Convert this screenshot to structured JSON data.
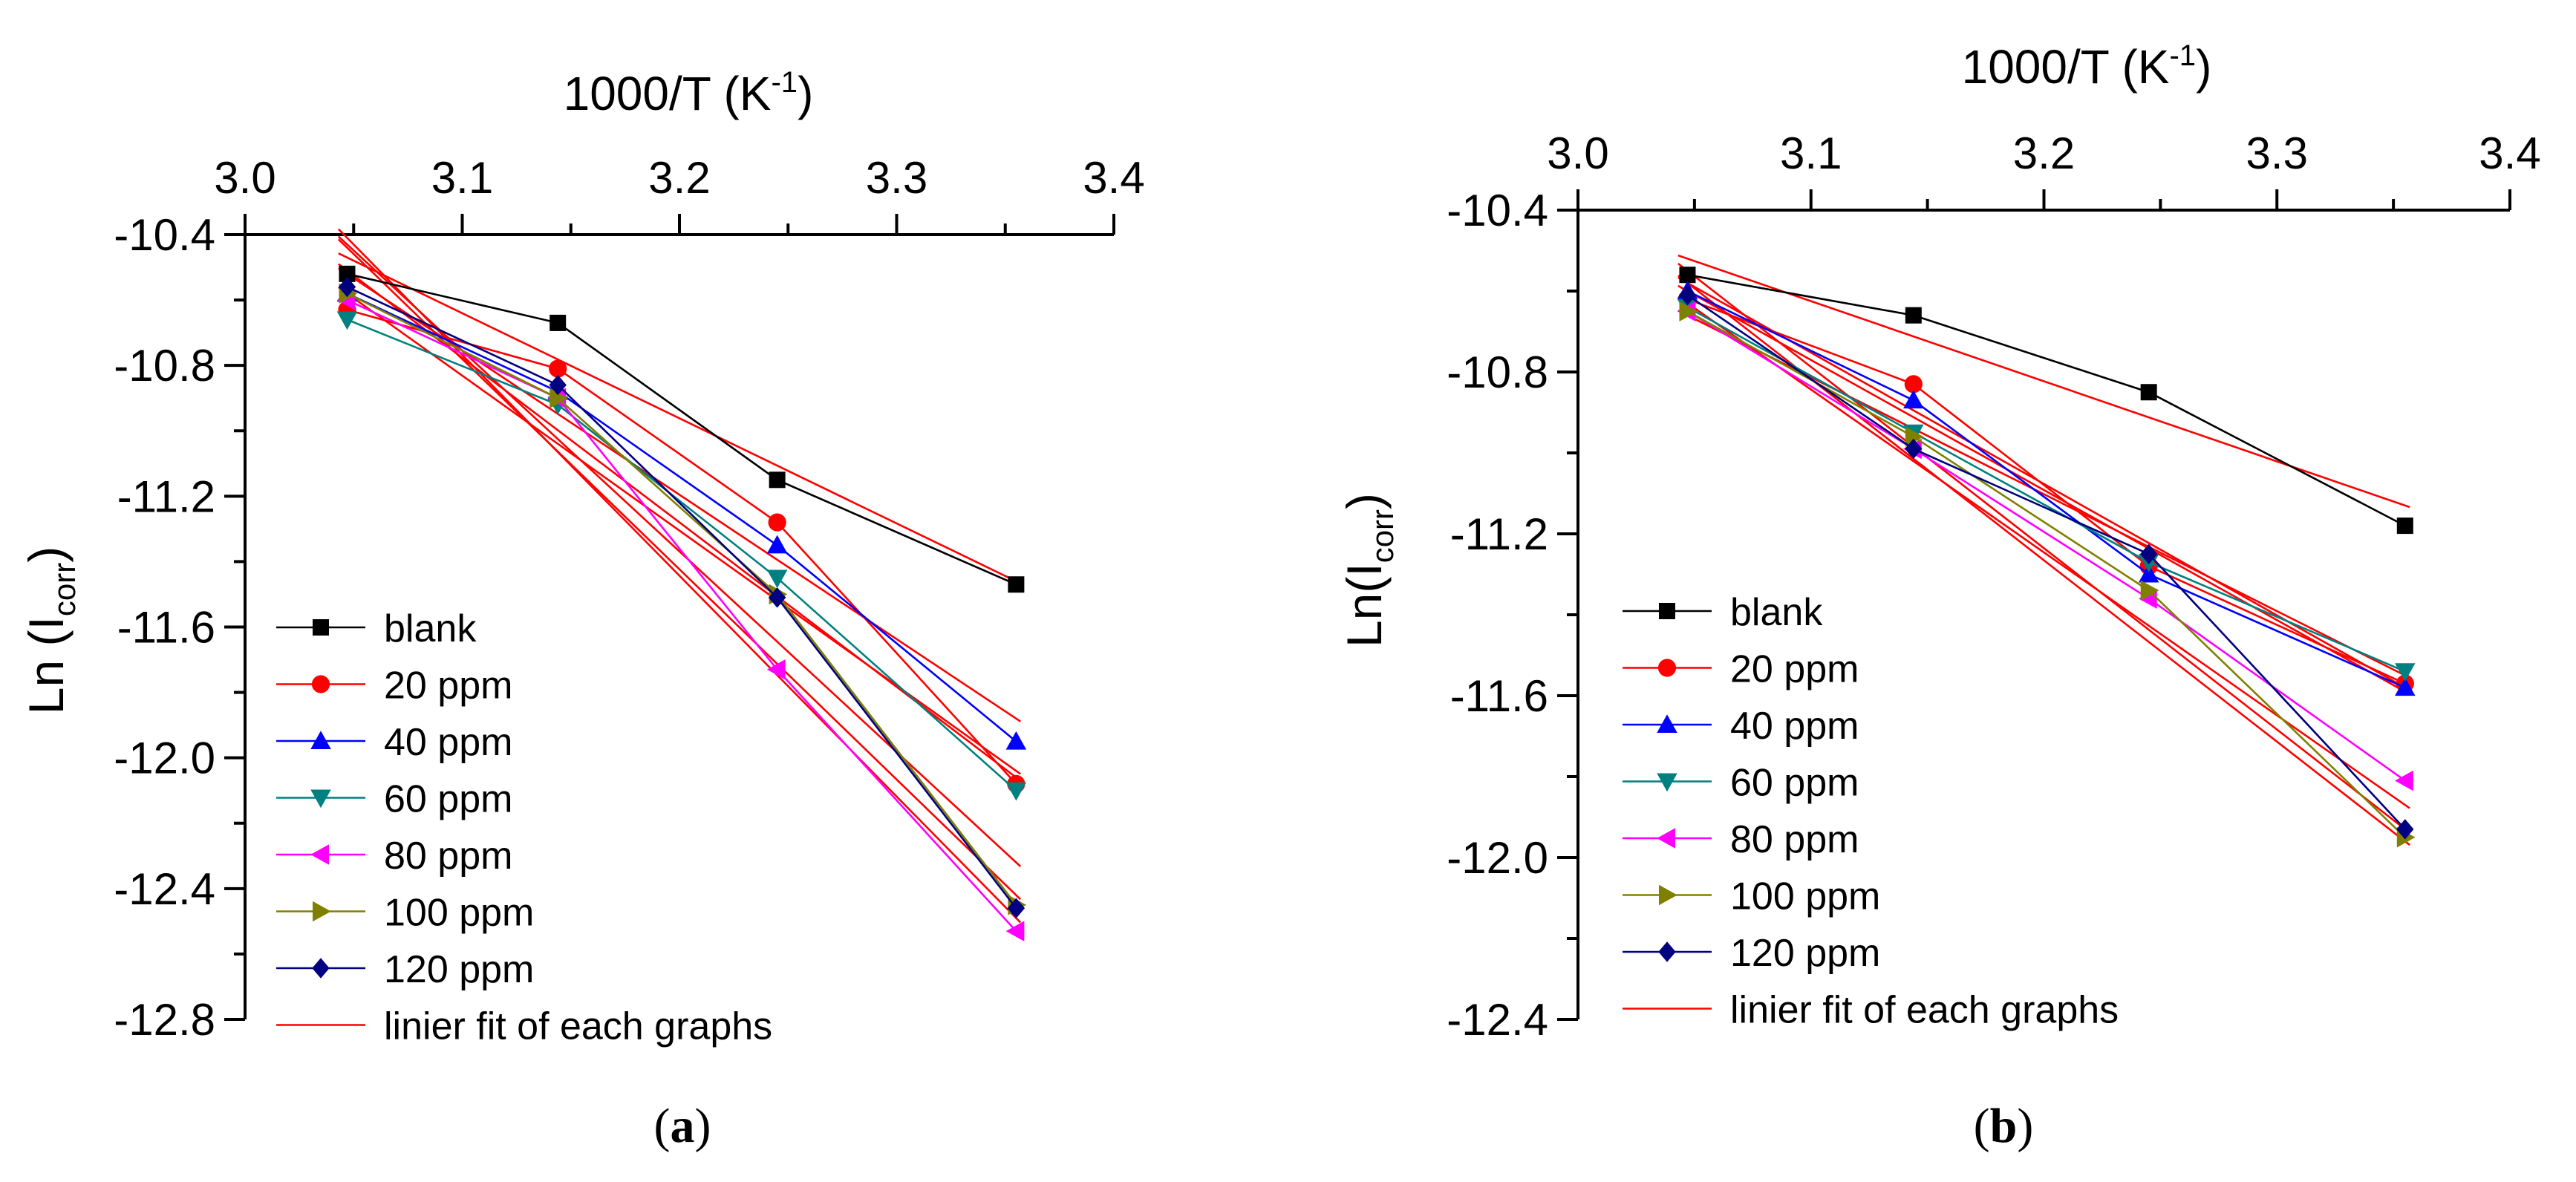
{
  "chart_data": [
    {
      "type": "line",
      "panel_label": "a",
      "xlabel": "1000/T (K",
      "xlabel_sup": "-1",
      "xlabel_close": ")",
      "ylabel": "Ln (I",
      "ylabel_sub": "corr",
      "ylabel_close": ")",
      "xlim": [
        3.0,
        3.4
      ],
      "ylim": [
        -12.8,
        -10.4
      ],
      "x_axis_position": "top",
      "xticks": [
        "3.0",
        "3.1",
        "3.2",
        "3.3",
        "3.4"
      ],
      "yticks": [
        "-10.4",
        "-10.8",
        "-11.2",
        "-11.6",
        "-12.0",
        "-12.4",
        "-12.8"
      ],
      "grid": false,
      "legend_position": "bottom-left",
      "fit_label": "linier fit of each graphs",
      "fit_color": "#ff0000",
      "x": [
        3.047,
        3.144,
        3.245,
        3.355
      ],
      "series": [
        {
          "name": "blank",
          "marker": "square",
          "color": "#000000",
          "values": [
            -10.52,
            -10.67,
            -11.15,
            -11.47
          ],
          "fit": [
            -10.47,
            -11.46
          ]
        },
        {
          "name": "20 ppm",
          "marker": "circle",
          "color": "#ff0000",
          "values": [
            -10.63,
            -10.81,
            -11.28,
            -12.08
          ],
          "fit": [
            -10.51,
            -12.06
          ]
        },
        {
          "name": "40 ppm",
          "marker": "triangle-up",
          "color": "#0000ff",
          "values": [
            -10.58,
            -10.88,
            -11.35,
            -11.95
          ],
          "fit": [
            -10.52,
            -11.88
          ]
        },
        {
          "name": "60 ppm",
          "marker": "triangle-down",
          "color": "#008080",
          "values": [
            -10.66,
            -10.92,
            -11.45,
            -12.1
          ],
          "fit": [
            -10.58,
            -12.04
          ]
        },
        {
          "name": "80 ppm",
          "marker": "triangle-left",
          "color": "#ff00ff",
          "values": [
            -10.6,
            -10.9,
            -11.73,
            -12.53
          ],
          "fit": [
            -10.41,
            -12.49
          ]
        },
        {
          "name": "100 ppm",
          "marker": "triangle-right",
          "color": "#808000",
          "values": [
            -10.58,
            -10.9,
            -11.5,
            -12.45
          ],
          "fit": [
            -10.44,
            -12.42
          ]
        },
        {
          "name": "120 ppm",
          "marker": "diamond",
          "color": "#000080",
          "values": [
            -10.56,
            -10.86,
            -11.51,
            -12.46
          ],
          "fit": [
            -10.43,
            -12.32
          ]
        }
      ]
    },
    {
      "type": "line",
      "panel_label": "b",
      "xlabel": "1000/T (K",
      "xlabel_sup": "-1",
      "xlabel_close": ")",
      "ylabel": "Ln(I",
      "ylabel_sub": "corr",
      "ylabel_close": ")",
      "xlim": [
        3.0,
        3.4
      ],
      "ylim": [
        -12.4,
        -10.4
      ],
      "x_axis_position": "top",
      "xticks": [
        "3.0",
        "3.1",
        "3.2",
        "3.3",
        "3.4"
      ],
      "yticks": [
        "-10.4",
        "-10.8",
        "-11.2",
        "-11.6",
        "-12.0",
        "-12.4"
      ],
      "grid": false,
      "legend_position": "bottom-left",
      "fit_label": "linier fit of each graphs",
      "fit_color": "#ff0000",
      "x": [
        3.047,
        3.144,
        3.245,
        3.355
      ],
      "series": [
        {
          "name": "blank",
          "marker": "square",
          "color": "#000000",
          "values": [
            -10.56,
            -10.66,
            -10.85,
            -11.18
          ],
          "fit": [
            -10.52,
            -11.13
          ]
        },
        {
          "name": "20 ppm",
          "marker": "circle",
          "color": "#ff0000",
          "values": [
            -10.62,
            -10.83,
            -11.28,
            -11.57
          ],
          "fit": [
            -10.58,
            -11.58
          ]
        },
        {
          "name": "40 ppm",
          "marker": "triangle-up",
          "color": "#0000ff",
          "values": [
            -10.6,
            -10.87,
            -11.3,
            -11.58
          ],
          "fit": [
            -10.6,
            -11.59
          ]
        },
        {
          "name": "60 ppm",
          "marker": "triangle-down",
          "color": "#008080",
          "values": [
            -10.64,
            -10.95,
            -11.27,
            -11.54
          ],
          "fit": [
            -10.66,
            -11.55
          ]
        },
        {
          "name": "80 ppm",
          "marker": "triangle-left",
          "color": "#ff00ff",
          "values": [
            -10.65,
            -10.99,
            -11.36,
            -11.81
          ],
          "fit": [
            -10.63,
            -11.87
          ]
        },
        {
          "name": "100 ppm",
          "marker": "triangle-right",
          "color": "#808000",
          "values": [
            -10.65,
            -10.96,
            -11.34,
            -11.95
          ],
          "fit": [
            -10.55,
            -11.93
          ]
        },
        {
          "name": "120 ppm",
          "marker": "diamond",
          "color": "#000080",
          "values": [
            -10.61,
            -10.99,
            -11.25,
            -11.93
          ],
          "fit": [
            -10.58,
            -11.96
          ]
        }
      ]
    }
  ]
}
